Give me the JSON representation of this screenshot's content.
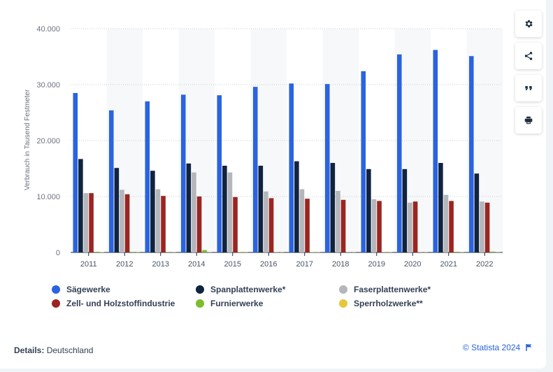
{
  "chart_data": {
    "type": "bar",
    "ylabel": "Verbrauch in Tausend Festmeter",
    "ylim": [
      0,
      40000
    ],
    "yticks": [
      "0",
      "10.000",
      "20.000",
      "30.000",
      "40.000"
    ],
    "categories": [
      "2011",
      "2012",
      "2013",
      "2014",
      "2015",
      "2016",
      "2017",
      "2018",
      "2019",
      "2020",
      "2021",
      "2022"
    ],
    "series": [
      {
        "name": "Sägewerke",
        "color": "#2b63e0",
        "values": [
          28500,
          25400,
          27000,
          28200,
          28100,
          29600,
          30200,
          30100,
          32400,
          35400,
          36200,
          35100
        ]
      },
      {
        "name": "Spanplattenwerke*",
        "color": "#10233f",
        "values": [
          16700,
          15100,
          14600,
          15900,
          15500,
          15500,
          16300,
          16000,
          14900,
          14900,
          16000,
          14100
        ]
      },
      {
        "name": "Faserplattenwerke*",
        "color": "#b3b6bb",
        "values": [
          10600,
          11200,
          11300,
          14300,
          14300,
          10900,
          11300,
          11000,
          9500,
          8900,
          10300,
          9100
        ]
      },
      {
        "name": "Zell- und Holzstoffindustrie",
        "color": "#9b2520",
        "values": [
          10600,
          10400,
          10100,
          10000,
          9900,
          9700,
          9600,
          9400,
          9200,
          9100,
          9200,
          8900
        ]
      },
      {
        "name": "Furnierwerke",
        "color": "#7cbd2d",
        "values": [
          120,
          100,
          90,
          420,
          80,
          60,
          60,
          60,
          50,
          50,
          130,
          150
        ]
      },
      {
        "name": "Sperrholzwerke**",
        "color": "#e5c73b",
        "values": [
          50,
          40,
          40,
          40,
          40,
          40,
          40,
          40,
          40,
          40,
          40,
          40
        ]
      }
    ],
    "grid": true,
    "legend_position": "bottom"
  },
  "legend": [
    {
      "label": "Sägewerke",
      "color": "#2b63e0"
    },
    {
      "label": "Spanplattenwerke*",
      "color": "#10233f"
    },
    {
      "label": "Faserplattenwerke*",
      "color": "#b3b6bb"
    },
    {
      "label": "Zell- und Holzstoffindustrie",
      "color": "#9b2520"
    },
    {
      "label": "Furnierwerke",
      "color": "#7cbd2d"
    },
    {
      "label": "Sperrholzwerke**",
      "color": "#e5c73b"
    }
  ],
  "footer": {
    "details_label": "Details:",
    "details_value": "Deutschland",
    "copyright": "© Statista 2024"
  },
  "toolbar": {
    "settings_icon": "gear-icon",
    "share_icon": "share-icon",
    "cite_icon": "quote-icon",
    "print_icon": "print-icon"
  }
}
